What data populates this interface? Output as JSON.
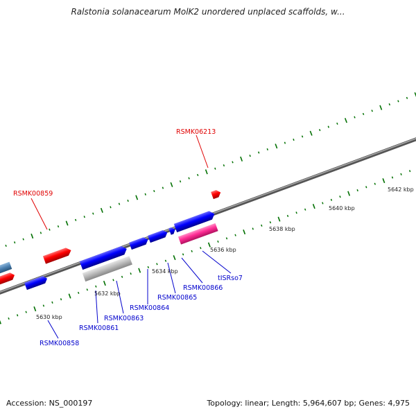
{
  "title": "Ralstonia solanacearum MolK2 unordered unplaced scaffolds, w...",
  "footer": {
    "accession": "Accession: NS_000197",
    "summary": "Topology: linear; Length: 5,964,607 bp; Genes: 4,975"
  },
  "colors": {
    "forward_gene": "#0000ff",
    "reverse_gene": "#ff0000",
    "pseudo_gene": "#bbbbbb",
    "mobile_element": "#ff3399",
    "edge_gene": "#4a7fb0",
    "tick": "#007000",
    "backbone": "#777777",
    "forward_label": "#0000cc",
    "reverse_label": "#e00000"
  },
  "kbp_labels": [
    "5630 kbp",
    "5632 kbp",
    "5634 kbp",
    "5636 kbp",
    "5638 kbp",
    "5640 kbp",
    "5642 kbp"
  ],
  "gene_labels": {
    "reverse": [
      "RSMK06213",
      "RSMK00859"
    ],
    "forward": [
      "RSMK00858",
      "RSMK00861",
      "RSMK00863",
      "RSMK00864",
      "RSMK00865",
      "RSMK00866",
      "tISRso7"
    ]
  }
}
